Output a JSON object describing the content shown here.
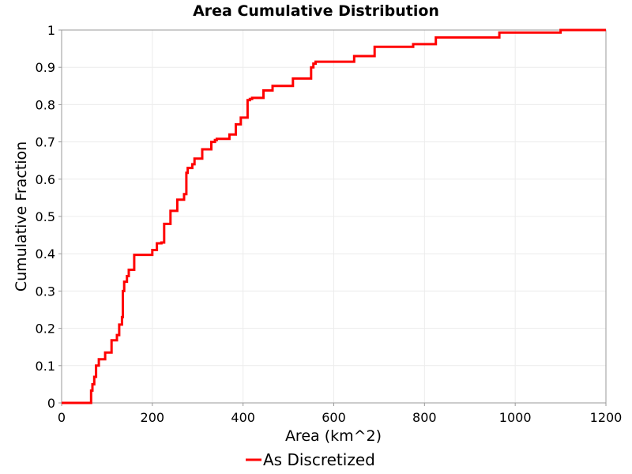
{
  "chart_data": {
    "type": "line",
    "title": "Area Cumulative Distribution",
    "xlabel": "Area (km^2)",
    "ylabel": "Cumulative Fraction",
    "xlim": [
      0,
      1200
    ],
    "ylim": [
      0,
      1
    ],
    "x_ticks": [
      "0",
      "200",
      "400",
      "600",
      "800",
      "1000",
      "1200"
    ],
    "y_ticks": [
      "0",
      "0.1",
      "0.2",
      "0.3",
      "0.4",
      "0.5",
      "0.6",
      "0.7",
      "0.8",
      "0.9",
      "1"
    ],
    "grid": true,
    "legend_position": "bottom-center",
    "series": [
      {
        "name": "As Discretized",
        "color": "#ff0000",
        "style": "step",
        "x": [
          0,
          65,
          68,
          72,
          76,
          82,
          96,
          110,
          122,
          127,
          133,
          135,
          138,
          140,
          144,
          148,
          152,
          160,
          165,
          192,
          200,
          206,
          210,
          220,
          226,
          238,
          240,
          250,
          255,
          268,
          270,
          275,
          278,
          283,
          288,
          293,
          302,
          310,
          320,
          330,
          338,
          342,
          346,
          355,
          370,
          375,
          384,
          390,
          395,
          404,
          410,
          415,
          420,
          425,
          445,
          455,
          465,
          480,
          510,
          515,
          540,
          550,
          555,
          560,
          565,
          590,
          645,
          690,
          760,
          775,
          825,
          965,
          1100,
          1200
        ],
        "y": [
          0,
          0.033,
          0.05,
          0.07,
          0.1,
          0.117,
          0.135,
          0.168,
          0.182,
          0.21,
          0.23,
          0.3,
          0.325,
          0.325,
          0.34,
          0.357,
          0.357,
          0.397,
          0.397,
          0.397,
          0.41,
          0.41,
          0.428,
          0.43,
          0.48,
          0.48,
          0.515,
          0.515,
          0.545,
          0.545,
          0.56,
          0.617,
          0.63,
          0.63,
          0.64,
          0.655,
          0.655,
          0.68,
          0.68,
          0.7,
          0.705,
          0.708,
          0.708,
          0.708,
          0.72,
          0.72,
          0.747,
          0.747,
          0.765,
          0.765,
          0.812,
          0.815,
          0.818,
          0.818,
          0.838,
          0.838,
          0.85,
          0.85,
          0.87,
          0.87,
          0.87,
          0.9,
          0.91,
          0.915,
          0.915,
          0.915,
          0.93,
          0.955,
          0.955,
          0.962,
          0.98,
          0.993,
          1.0,
          1.0
        ]
      }
    ]
  }
}
